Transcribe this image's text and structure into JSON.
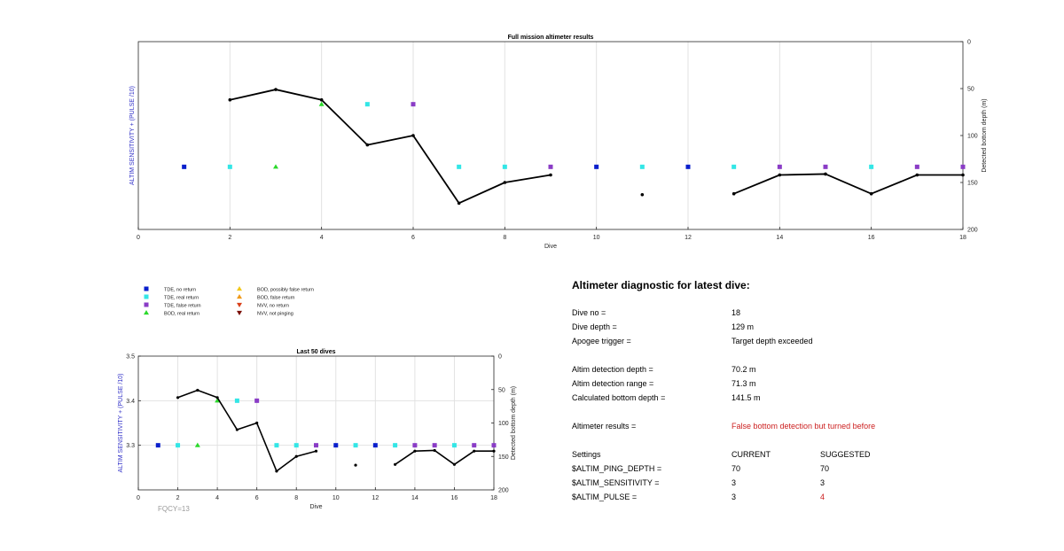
{
  "colors": {
    "tde_no_return": "#0a1fcc",
    "tde_real_return": "#33e6e6",
    "tde_false_return": "#8a3cc6",
    "bod_real_return": "#2bd92b",
    "bod_possibly_false": "#f2c81a",
    "bod_false_return": "#f09a1a",
    "nvv_no_return": "#d9401a",
    "nvv_not_pinging": "#7a1008",
    "line": "#000000",
    "left_axis_label": "#3030c8",
    "alert": "#cc2020"
  },
  "legend": [
    {
      "label": "TDE, no return",
      "shape": "square",
      "color_key": "tde_no_return"
    },
    {
      "label": "TDE, real return",
      "shape": "square",
      "color_key": "tde_real_return"
    },
    {
      "label": "TDE, false return",
      "shape": "square",
      "color_key": "tde_false_return"
    },
    {
      "label": "BOD, real return",
      "shape": "triangle-up",
      "color_key": "bod_real_return"
    },
    {
      "label": "BOD, possibly false return",
      "shape": "triangle-up",
      "color_key": "bod_possibly_false"
    },
    {
      "label": "BOD, false return",
      "shape": "triangle-up",
      "color_key": "bod_false_return"
    },
    {
      "label": "NVV, no return",
      "shape": "triangle-down",
      "color_key": "nvv_no_return"
    },
    {
      "label": "NVV, not pinging",
      "shape": "triangle-down",
      "color_key": "nvv_not_pinging"
    }
  ],
  "chart_data": [
    {
      "type": "line",
      "title": "Full mission altimeter results",
      "xlabel": "Dive",
      "ylabel_left": "ALTIM SENSITIVITY + (PULSE /10)",
      "ylabel_right": "Detected bottom depth (m)",
      "xlim": [
        0,
        18
      ],
      "xticks": [
        0,
        2,
        4,
        6,
        8,
        10,
        12,
        14,
        16,
        18
      ],
      "ylim_right": [
        0,
        200
      ],
      "yticks_right": [
        0,
        50,
        100,
        150,
        200
      ],
      "right_axis_reversed": true,
      "left_ylim": [
        3.2,
        3.5
      ],
      "left_yticks": [],
      "grid": "vertical",
      "series": [
        {
          "kind": "line",
          "x": [
            2,
            3,
            4,
            5,
            6,
            7,
            8,
            9
          ],
          "y": [
            62,
            51,
            62,
            110,
            100,
            172,
            150,
            142
          ]
        },
        {
          "kind": "line",
          "x": [
            11
          ],
          "y": [
            163
          ]
        },
        {
          "kind": "line",
          "x": [
            13,
            14,
            15,
            16,
            17,
            18
          ],
          "y": [
            162,
            142,
            141,
            162,
            142,
            142
          ]
        }
      ],
      "markers": [
        {
          "x": 1,
          "y": 3.3,
          "cat": "tde_no_return"
        },
        {
          "x": 2,
          "y": 3.3,
          "cat": "tde_real_return"
        },
        {
          "x": 3,
          "y": 3.3,
          "cat": "bod_real_return"
        },
        {
          "x": 4,
          "y": 3.4,
          "cat": "bod_real_return"
        },
        {
          "x": 5,
          "y": 3.4,
          "cat": "tde_real_return"
        },
        {
          "x": 6,
          "y": 3.4,
          "cat": "tde_false_return"
        },
        {
          "x": 7,
          "y": 3.3,
          "cat": "tde_real_return"
        },
        {
          "x": 8,
          "y": 3.3,
          "cat": "tde_real_return"
        },
        {
          "x": 9,
          "y": 3.3,
          "cat": "tde_false_return"
        },
        {
          "x": 10,
          "y": 3.3,
          "cat": "tde_no_return"
        },
        {
          "x": 11,
          "y": 3.3,
          "cat": "tde_real_return"
        },
        {
          "x": 12,
          "y": 3.3,
          "cat": "tde_no_return"
        },
        {
          "x": 13,
          "y": 3.3,
          "cat": "tde_real_return"
        },
        {
          "x": 14,
          "y": 3.3,
          "cat": "tde_false_return"
        },
        {
          "x": 15,
          "y": 3.3,
          "cat": "tde_false_return"
        },
        {
          "x": 16,
          "y": 3.3,
          "cat": "tde_real_return"
        },
        {
          "x": 17,
          "y": 3.3,
          "cat": "tde_false_return"
        },
        {
          "x": 18,
          "y": 3.3,
          "cat": "tde_false_return"
        }
      ]
    },
    {
      "type": "line",
      "title": "Last 50 dives",
      "xlabel": "Dive",
      "ylabel_left": "ALTIM SENSITIVITY + (PULSE /10)",
      "ylabel_right": "Detected bottom depth (m)",
      "annotation": "FQCY=13",
      "xlim": [
        0,
        18
      ],
      "xticks": [
        0,
        2,
        4,
        6,
        8,
        10,
        12,
        14,
        16,
        18
      ],
      "ylim_right": [
        0,
        200
      ],
      "yticks_right": [
        0,
        50,
        100,
        150,
        200
      ],
      "right_axis_reversed": true,
      "left_ylim": [
        3.2,
        3.5
      ],
      "left_yticks": [
        3.3,
        3.4,
        3.5
      ],
      "grid": "both",
      "series": [
        {
          "kind": "line",
          "x": [
            2,
            3,
            4,
            5,
            6,
            7,
            8,
            9
          ],
          "y": [
            62,
            51,
            62,
            110,
            100,
            172,
            150,
            142
          ]
        },
        {
          "kind": "line",
          "x": [
            11
          ],
          "y": [
            163
          ]
        },
        {
          "kind": "line",
          "x": [
            13,
            14,
            15,
            16,
            17,
            18
          ],
          "y": [
            162,
            142,
            141,
            162,
            142,
            142
          ]
        }
      ],
      "markers": [
        {
          "x": 1,
          "y": 3.3,
          "cat": "tde_no_return"
        },
        {
          "x": 2,
          "y": 3.3,
          "cat": "tde_real_return"
        },
        {
          "x": 3,
          "y": 3.3,
          "cat": "bod_real_return"
        },
        {
          "x": 4,
          "y": 3.4,
          "cat": "bod_real_return"
        },
        {
          "x": 5,
          "y": 3.4,
          "cat": "tde_real_return"
        },
        {
          "x": 6,
          "y": 3.4,
          "cat": "tde_false_return"
        },
        {
          "x": 7,
          "y": 3.3,
          "cat": "tde_real_return"
        },
        {
          "x": 8,
          "y": 3.3,
          "cat": "tde_real_return"
        },
        {
          "x": 9,
          "y": 3.3,
          "cat": "tde_false_return"
        },
        {
          "x": 10,
          "y": 3.3,
          "cat": "tde_no_return"
        },
        {
          "x": 11,
          "y": 3.3,
          "cat": "tde_real_return"
        },
        {
          "x": 12,
          "y": 3.3,
          "cat": "tde_no_return"
        },
        {
          "x": 13,
          "y": 3.3,
          "cat": "tde_real_return"
        },
        {
          "x": 14,
          "y": 3.3,
          "cat": "tde_false_return"
        },
        {
          "x": 15,
          "y": 3.3,
          "cat": "tde_false_return"
        },
        {
          "x": 16,
          "y": 3.3,
          "cat": "tde_real_return"
        },
        {
          "x": 17,
          "y": 3.3,
          "cat": "tde_false_return"
        },
        {
          "x": 18,
          "y": 3.3,
          "cat": "tde_false_return"
        }
      ]
    }
  ],
  "diagnostic": {
    "title": "Altimeter diagnostic for latest dive:",
    "dive_no_label": "Dive no =",
    "dive_no_value": "18",
    "dive_depth_label": "Dive depth =",
    "dive_depth_value": "129 m",
    "apogee_label": "Apogee trigger =",
    "apogee_value": "Target depth exceeded",
    "altim_detection_depth_label": "Altim detection depth =",
    "altim_detection_depth_value": "70.2 m",
    "altim_detection_range_label": "Altim detection range =",
    "altim_detection_range_value": "71.3 m",
    "calc_bottom_label": "Calculated bottom depth =",
    "calc_bottom_value": "141.5 m",
    "results_label": "Altimeter results =",
    "results_value": "False bottom detection but turned before",
    "settings_label": "Settings",
    "current_label": "CURRENT",
    "suggested_label": "SUGGESTED",
    "ping_depth_label": "$ALTIM_PING_DEPTH =",
    "ping_depth_current": "70",
    "ping_depth_suggested": "70",
    "sensitivity_label": "$ALTIM_SENSITIVITY =",
    "sensitivity_current": "3",
    "sensitivity_suggested": "3",
    "pulse_label": "$ALTIM_PULSE =",
    "pulse_current": "3",
    "pulse_suggested": "4"
  }
}
